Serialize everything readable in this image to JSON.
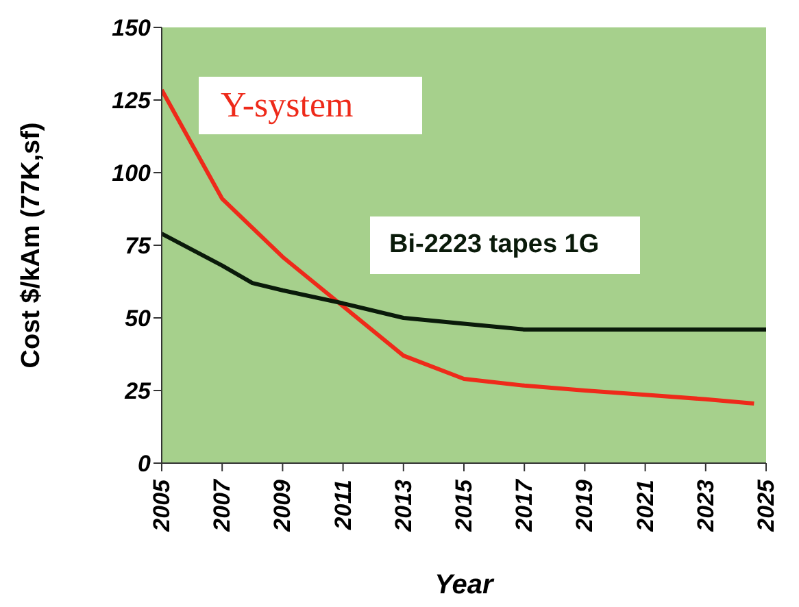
{
  "chart_data": {
    "type": "line",
    "xlabel": "Year",
    "ylabel": "Cost  $/kAm (77K,sf)",
    "xlim": [
      2005,
      2025
    ],
    "xticks": [
      2005,
      2007,
      2009,
      2011,
      2013,
      2015,
      2017,
      2019,
      2021,
      2023,
      2025
    ],
    "ylim": [
      0,
      150
    ],
    "yticks": [
      0,
      25,
      50,
      75,
      100,
      125,
      150
    ],
    "series": [
      {
        "name": "Y-system",
        "color": "#ee2a1a",
        "x": [
          2005,
          2007,
          2009,
          2011,
          2013,
          2015,
          2017,
          2019,
          2021,
          2023,
          2024.6
        ],
        "values": [
          128.5,
          91,
          71,
          54,
          37,
          29,
          26.7,
          25,
          23.5,
          22,
          20.5
        ]
      },
      {
        "name": "Bi-2223 tapes 1G",
        "color": "#0a1a0a",
        "x": [
          2005,
          2007,
          2008,
          2009,
          2011,
          2013,
          2015,
          2017,
          2018,
          2025
        ],
        "values": [
          79,
          68,
          62,
          59.5,
          55,
          50,
          48,
          46,
          46,
          46
        ]
      }
    ],
    "legend": false,
    "marker": "none",
    "line_style": "solid"
  }
}
